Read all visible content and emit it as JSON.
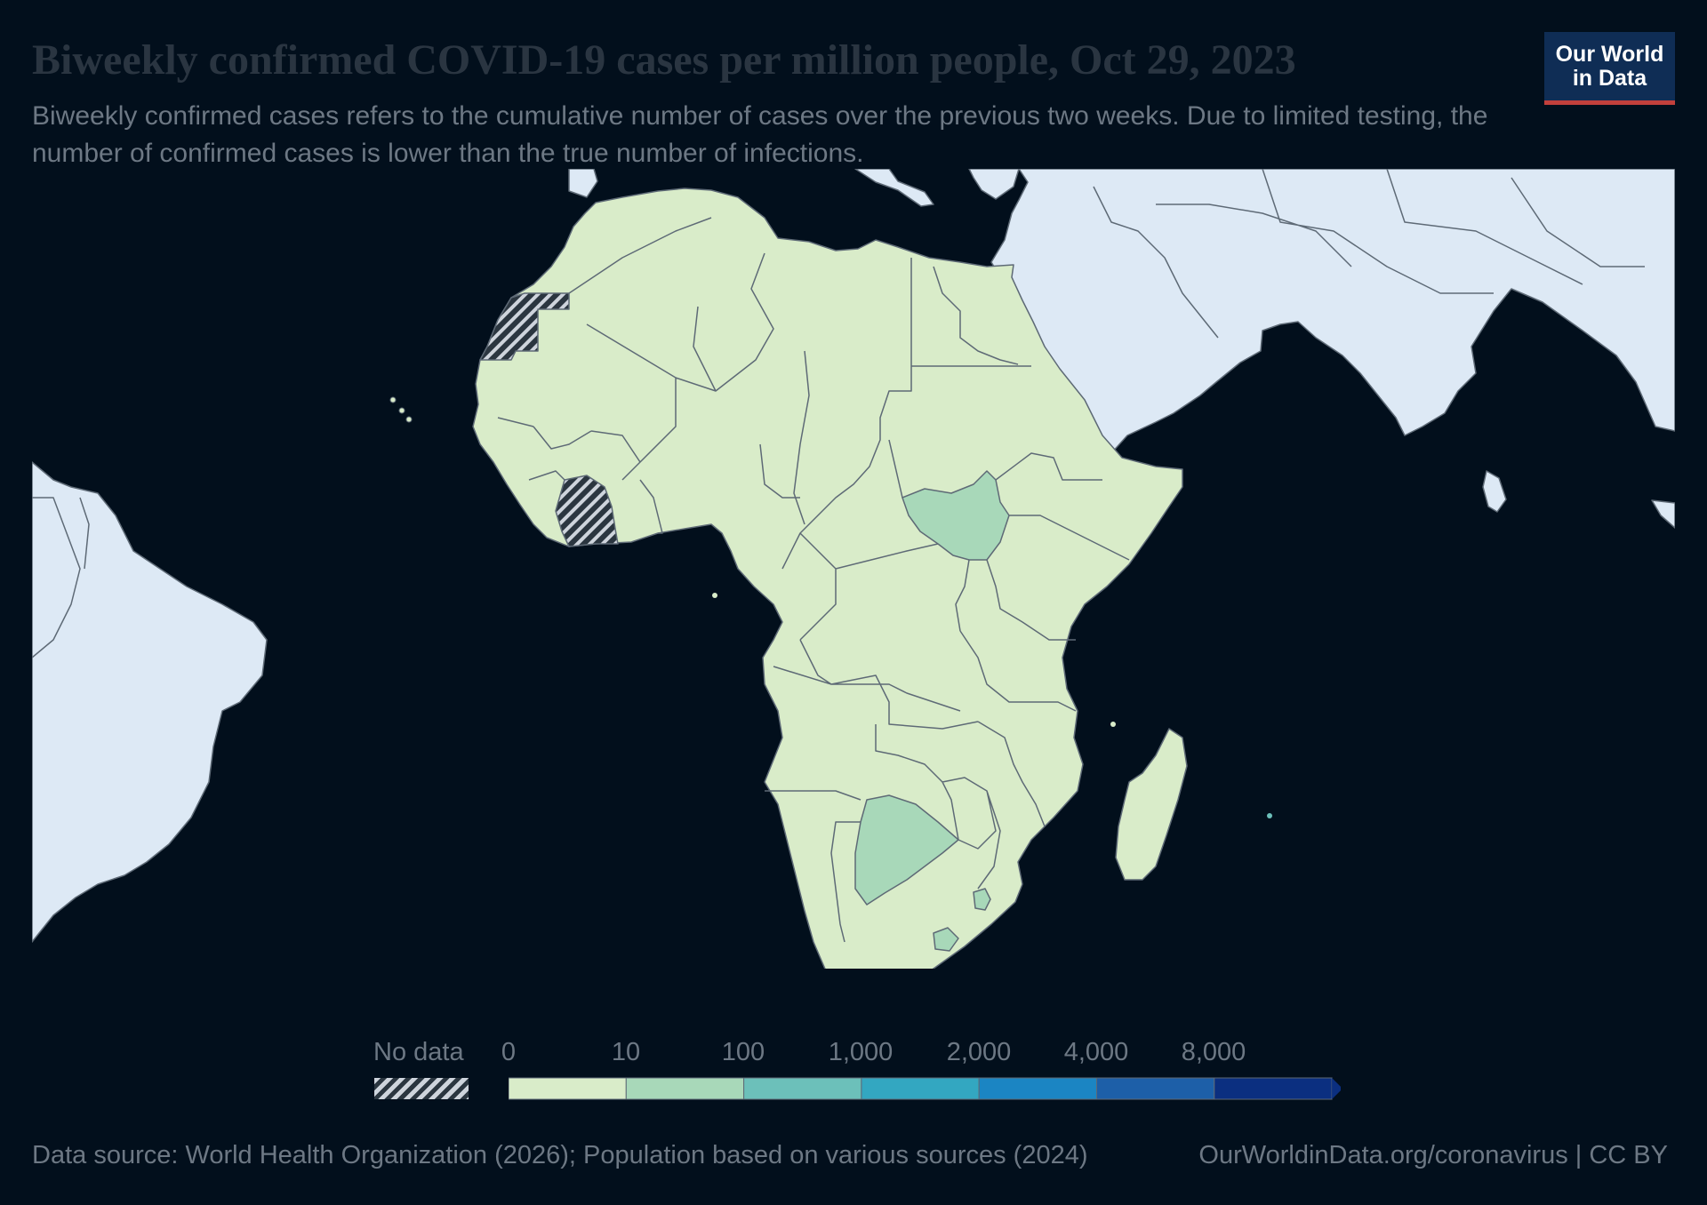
{
  "title": "Biweekly confirmed COVID-19 cases per million people, Oct 29, 2023",
  "subtitle": "Biweekly confirmed cases refers to the cumulative number of cases over the previous two weeks. Due to limited testing, the number of confirmed cases is lower than the true number of infections.",
  "logo": {
    "line1": "Our World",
    "line2": "in Data"
  },
  "legend": {
    "no_data_label": "No data",
    "ticks": [
      "0",
      "10",
      "100",
      "1,000",
      "2,000",
      "4,000",
      "8,000"
    ],
    "colors": [
      "#d9ecc9",
      "#a8d8b9",
      "#6cc0ba",
      "#33a7c1",
      "#1b85c3",
      "#1d5fa8",
      "#0b2f80"
    ]
  },
  "map_data": {
    "date": "Oct 29, 2023",
    "metric": "Biweekly confirmed cases per million people",
    "bins": [
      "0-10",
      "10-100"
    ],
    "highlighted_10_to_100": [
      "South Sudan",
      "Botswana",
      "Eswatini",
      "Lesotho"
    ],
    "no_data": [
      "Western Sahara",
      "Côte d'Ivoire"
    ],
    "colors": {
      "ocean": "#020f1c",
      "non_africa_land": "#dde9f5",
      "bin_0_10": "#d9ecc9",
      "bin_10_100": "#a8d8b9",
      "border": "#5e6a76",
      "nodata_hatch": "#ced4dc"
    }
  },
  "footer": {
    "source": "Data source: World Health Organization (2026); Population based on various sources (2024)",
    "link": "OurWorldinData.org/coronavirus | CC BY"
  }
}
